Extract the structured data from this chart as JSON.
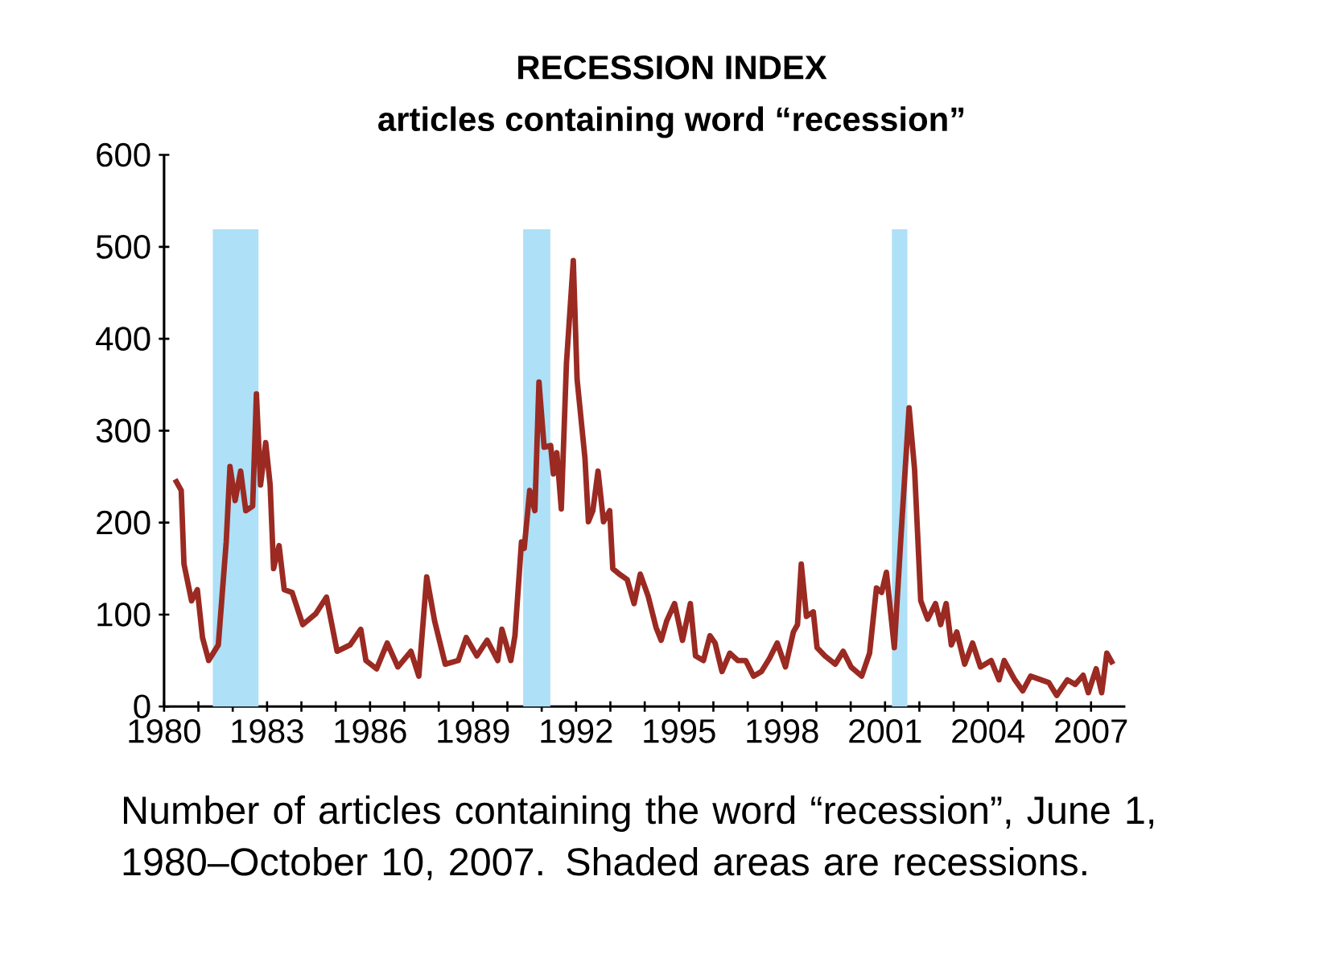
{
  "chart_data": {
    "type": "line",
    "title": "RECESSION INDEX",
    "subtitle": "articles containing word “recession”",
    "annotations": [
      "Number of articles containing the word “recession”, June 1, 1980–October 10, 2007. Shaded areas are recessions."
    ],
    "color": "#9a2a22",
    "x": [
      1980.32,
      1980.5,
      1980.58,
      1980.8,
      1980.97,
      1981.12,
      1981.3,
      1981.58,
      1981.81,
      1981.92,
      1982.07,
      1982.23,
      1982.38,
      1982.58,
      1982.69,
      1982.81,
      1982.96,
      1983.09,
      1983.19,
      1983.35,
      1983.5,
      1983.73,
      1984.04,
      1984.42,
      1984.73,
      1985.04,
      1985.42,
      1985.73,
      1985.88,
      1986.19,
      1986.5,
      1986.81,
      1987.19,
      1987.42,
      1987.65,
      1987.88,
      1988.19,
      1988.57,
      1988.8,
      1989.11,
      1989.41,
      1989.72,
      1989.84,
      1990.1,
      1990.22,
      1990.41,
      1990.49,
      1990.65,
      1990.8,
      1990.92,
      1991.07,
      1991.26,
      1991.34,
      1991.44,
      1991.57,
      1991.72,
      1991.92,
      1992.03,
      1992.26,
      1992.36,
      1992.49,
      1992.64,
      1992.8,
      1992.98,
      1993.07,
      1993.26,
      1993.49,
      1993.69,
      1993.87,
      1994.1,
      1994.33,
      1994.48,
      1994.64,
      1994.87,
      1995.1,
      1995.33,
      1995.48,
      1995.71,
      1995.9,
      1996.05,
      1996.25,
      1996.48,
      1996.71,
      1996.94,
      1997.17,
      1997.4,
      1997.63,
      1997.86,
      1998.1,
      1998.33,
      1998.45,
      1998.56,
      1998.71,
      1998.91,
      1999.02,
      1999.25,
      1999.55,
      1999.78,
      2000.01,
      2000.32,
      2000.55,
      2000.75,
      2000.9,
      2001.04,
      2001.27,
      2001.47,
      2001.7,
      2001.86,
      2002.04,
      2002.24,
      2002.47,
      2002.62,
      2002.78,
      2002.93,
      2003.09,
      2003.32,
      2003.55,
      2003.78,
      2004.09,
      2004.32,
      2004.47,
      2004.78,
      2005.01,
      2005.24,
      2005.54,
      2005.77,
      2006.0,
      2006.31,
      2006.54,
      2006.77,
      2006.92,
      2007.15,
      2007.31,
      2007.46,
      2007.64
    ],
    "values": [
      247,
      235,
      155,
      115,
      127,
      75,
      50,
      67,
      179,
      261,
      224,
      256,
      213,
      218,
      340,
      241,
      287,
      241,
      150,
      175,
      127,
      124,
      89,
      101,
      119,
      60,
      67,
      84,
      50,
      41,
      69,
      43,
      60,
      33,
      141,
      93,
      46,
      50,
      75,
      55,
      72,
      50,
      84,
      50,
      77,
      179,
      172,
      235,
      213,
      353,
      282,
      284,
      253,
      276,
      215,
      373,
      485,
      356,
      270,
      201,
      213,
      256,
      201,
      213,
      150,
      144,
      138,
      112,
      144,
      120,
      86,
      72,
      93,
      112,
      72,
      112,
      55,
      50,
      77,
      69,
      38,
      58,
      50,
      50,
      33,
      38,
      52,
      69,
      43,
      81,
      89,
      155,
      98,
      103,
      64,
      55,
      46,
      60,
      43,
      33,
      58,
      129,
      124,
      146,
      64,
      189,
      325,
      258,
      115,
      95,
      112,
      89,
      112,
      67,
      81,
      46,
      69,
      43,
      50,
      29,
      50,
      29,
      17,
      33,
      29,
      26,
      12,
      29,
      24,
      34,
      15,
      41,
      15,
      58,
      46
    ],
    "xlim": [
      1980,
      2008
    ],
    "ylim": [
      0,
      600
    ],
    "xticks": [
      1980,
      {
        "value": 1981,
        "label": null
      },
      {
        "value": 1982,
        "label": null
      },
      1983,
      {
        "value": 1984,
        "label": null
      },
      {
        "value": 1985,
        "label": null
      },
      1986,
      {
        "value": 1987,
        "label": null
      },
      {
        "value": 1988,
        "label": null
      },
      1989,
      {
        "value": 1990,
        "label": null
      },
      {
        "value": 1991,
        "label": null
      },
      1992,
      {
        "value": 1993,
        "label": null
      },
      {
        "value": 1994,
        "label": null
      },
      1995,
      {
        "value": 1996,
        "label": null
      },
      {
        "value": 1997,
        "label": null
      },
      1998,
      {
        "value": 1999,
        "label": null
      },
      {
        "value": 2000,
        "label": null
      },
      2001,
      {
        "value": 2002,
        "label": null
      },
      {
        "value": 2003,
        "label": null
      },
      2004,
      {
        "value": 2005,
        "label": null
      },
      {
        "value": 2006,
        "label": null
      },
      2007
    ],
    "yticks": [
      0,
      100,
      200,
      300,
      400,
      500,
      600
    ],
    "bands": [
      {
        "axis": "x",
        "from": 1981.42,
        "to": 1982.75,
        "color": "#aee0f7"
      },
      {
        "axis": "x",
        "from": 1990.46,
        "to": 1991.25,
        "color": "#aee0f7"
      },
      {
        "axis": "x",
        "from": 2001.2,
        "to": 2001.65,
        "color": "#aee0f7"
      }
    ]
  }
}
